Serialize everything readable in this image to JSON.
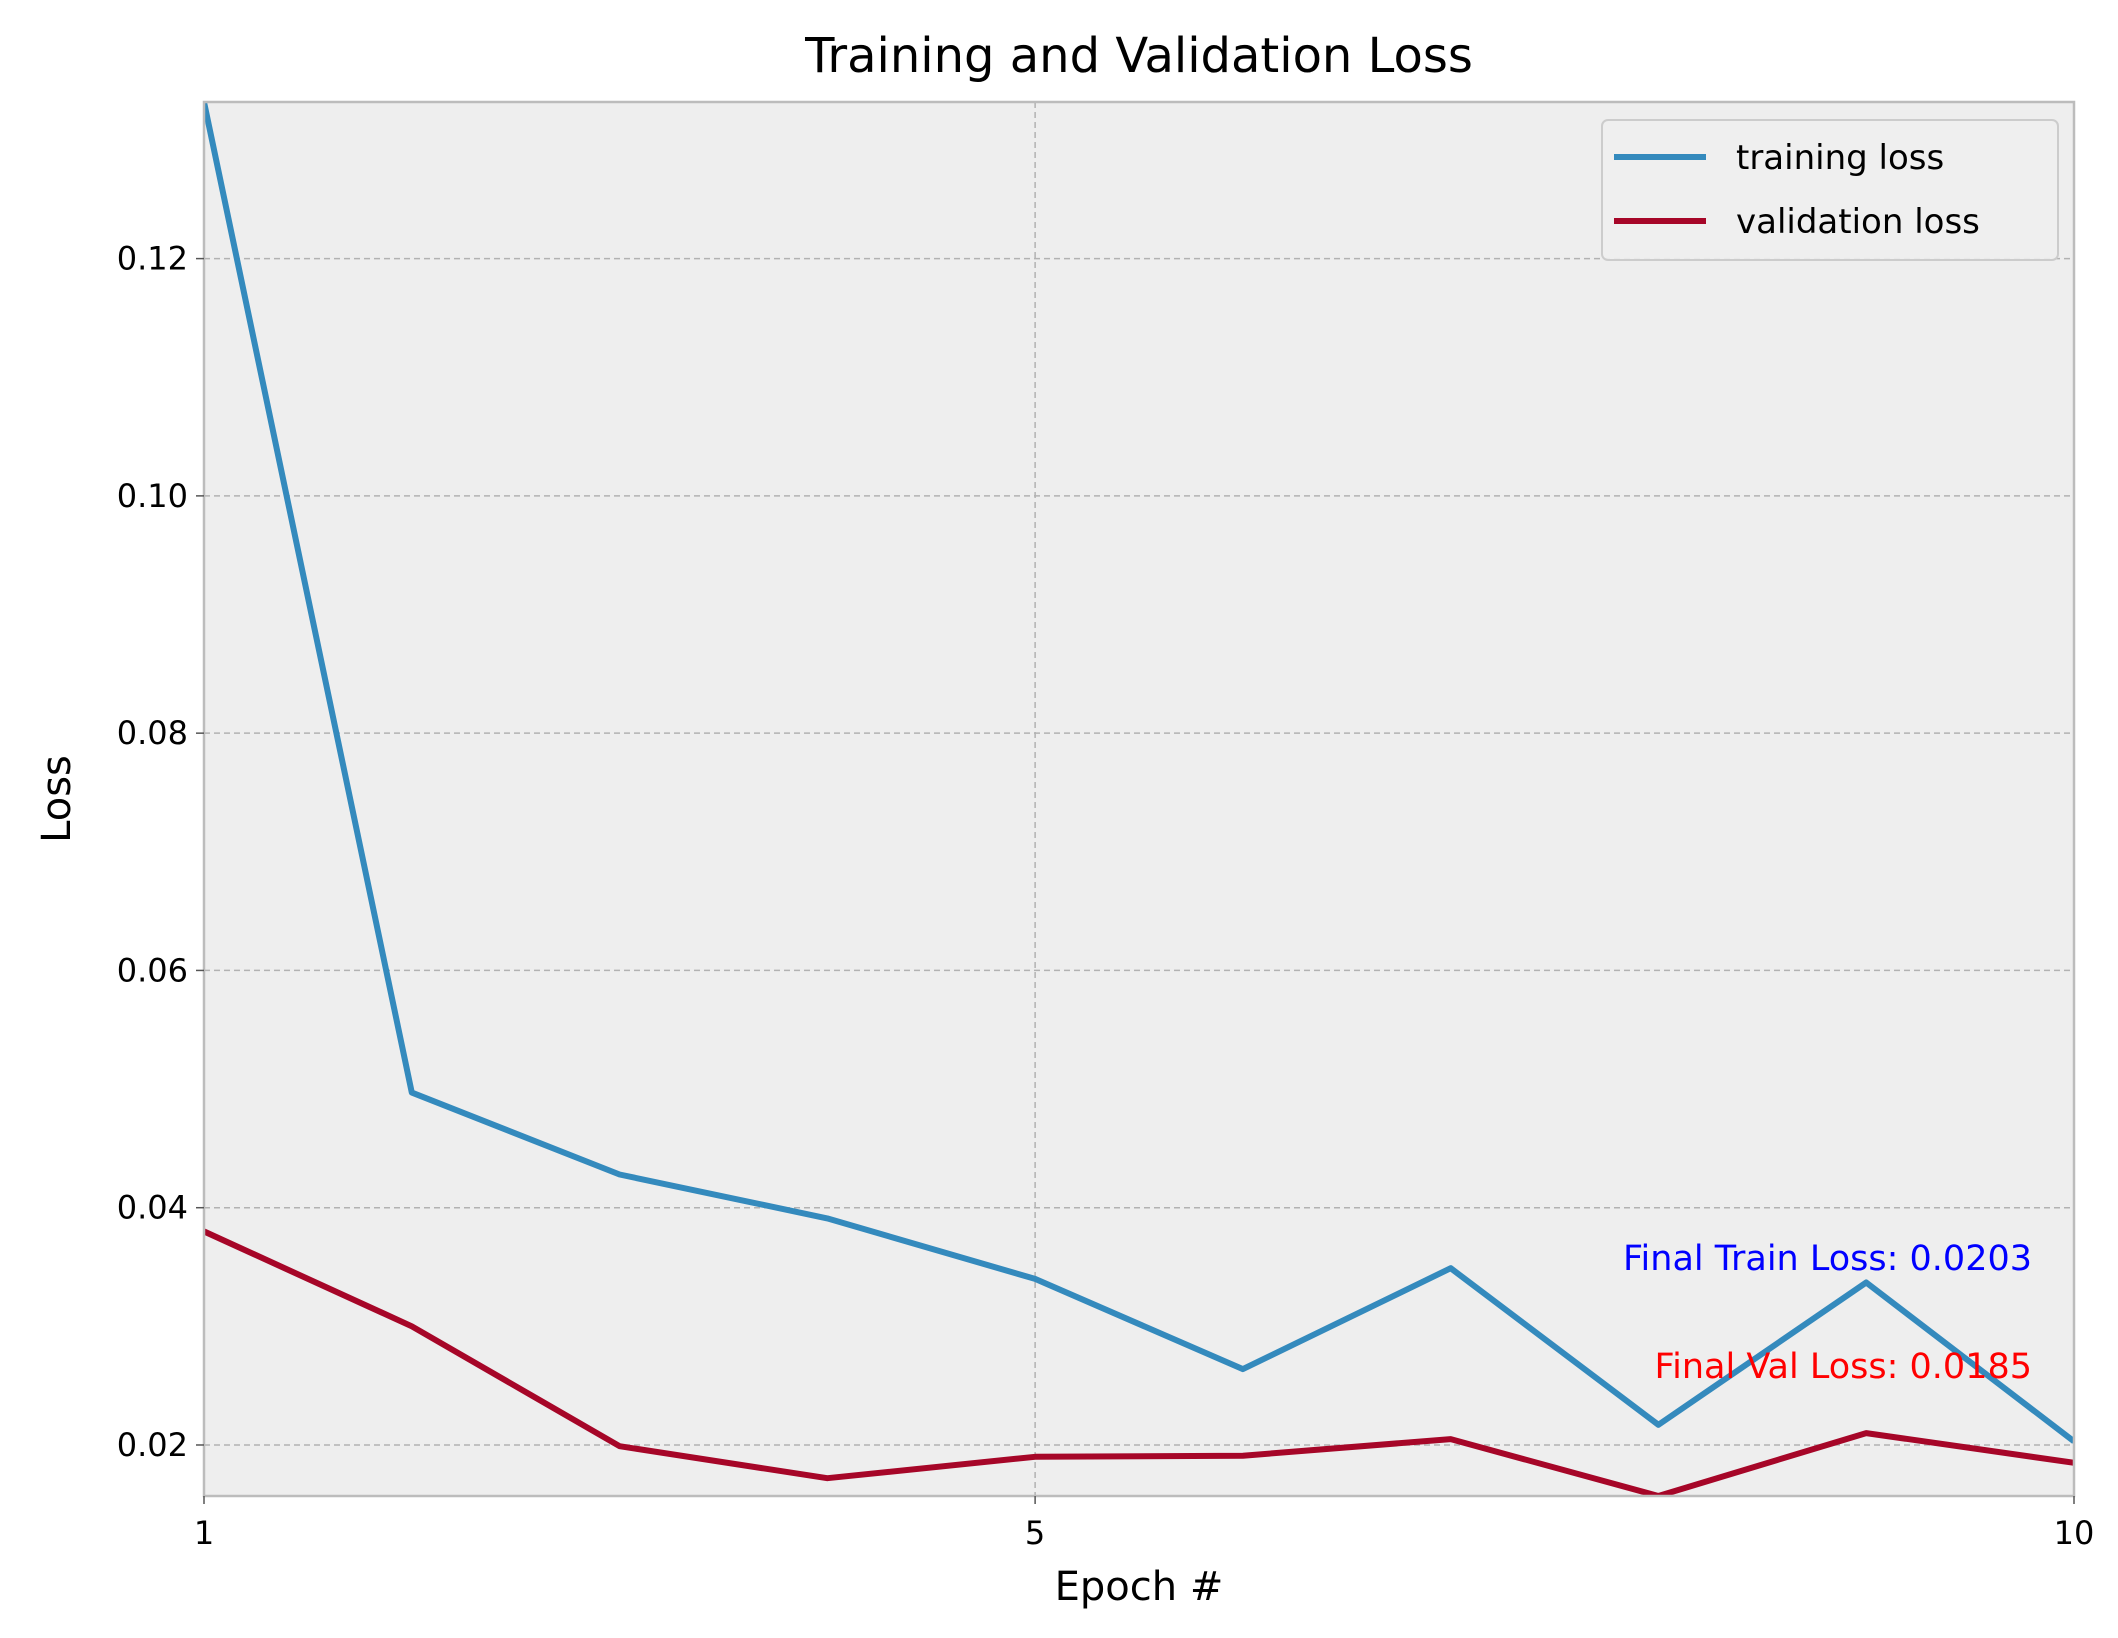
{
  "chart_data": {
    "type": "line",
    "title": "Training and Validation Loss",
    "xlabel": "Epoch #",
    "ylabel": "Loss",
    "xlim": [
      1,
      10
    ],
    "ylim": [
      0.0157,
      0.1332
    ],
    "xticks": [
      1,
      5,
      10
    ],
    "xtick_labels": [
      "1",
      "5",
      "10"
    ],
    "yticks": [
      0.02,
      0.04,
      0.06,
      0.08,
      0.1,
      0.12
    ],
    "ytick_labels": [
      "0.02",
      "0.04",
      "0.06",
      "0.08",
      "0.10",
      "0.12"
    ],
    "grid": true,
    "legend_position": "top-right",
    "x": [
      1,
      2,
      3,
      4,
      5,
      6,
      7,
      8,
      9,
      10
    ],
    "series": [
      {
        "name": "training loss",
        "color": "#348ABD",
        "values": [
          0.1332,
          0.0497,
          0.0428,
          0.0391,
          0.034,
          0.0264,
          0.0349,
          0.0217,
          0.0337,
          0.0203
        ]
      },
      {
        "name": "validation loss",
        "color": "#A60628",
        "values": [
          0.038,
          0.03,
          0.0199,
          0.0172,
          0.019,
          0.0191,
          0.0205,
          0.0157,
          0.021,
          0.0185
        ]
      }
    ],
    "annotations": [
      {
        "text": "Final Train Loss: 0.0203",
        "color": "#0000FF"
      },
      {
        "text": "Final Val Loss: 0.0185",
        "color": "#FF0000"
      }
    ]
  }
}
